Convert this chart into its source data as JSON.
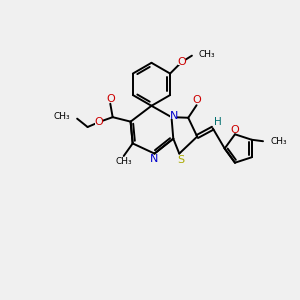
{
  "bg_color": "#f0f0f0",
  "bond_color": "#000000",
  "N_color": "#0000cc",
  "O_color": "#cc0000",
  "S_color": "#aaaa00",
  "H_color": "#007070",
  "lw": 1.4,
  "figsize": [
    3.0,
    3.0
  ],
  "dpi": 100,
  "xlim": [
    0,
    10
  ],
  "ylim": [
    0,
    10
  ]
}
